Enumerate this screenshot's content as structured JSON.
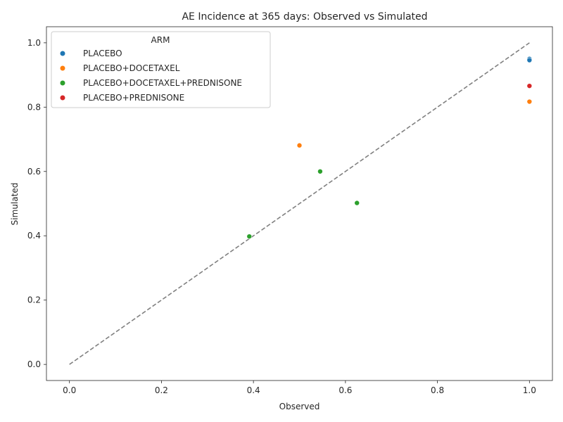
{
  "chart_data": {
    "type": "scatter",
    "title": "AE Incidence at 365 days: Observed vs Simulated",
    "xlabel": "Observed",
    "ylabel": "Simulated",
    "xlim": [
      -0.05,
      1.05
    ],
    "ylim": [
      -0.05,
      1.05
    ],
    "x_ticks": [
      "0.0",
      "0.2",
      "0.4",
      "0.6",
      "0.8",
      "1.0"
    ],
    "y_ticks": [
      "0.0",
      "0.2",
      "0.4",
      "0.6",
      "0.8",
      "1.0"
    ],
    "grid": false,
    "legend": {
      "title": "ARM",
      "placement": "top-left"
    },
    "reference_line": {
      "style": "dashed",
      "color": "#808080",
      "x": [
        0,
        1
      ],
      "y": [
        0,
        1
      ]
    },
    "series": [
      {
        "name": "PLACEBO",
        "color": "#1f77b4",
        "points": [
          [
            1.0,
            0.95
          ],
          [
            1.0,
            0.946
          ]
        ]
      },
      {
        "name": "PLACEBO+DOCETAXEL",
        "color": "#ff7f0e",
        "points": [
          [
            0.5,
            0.681
          ],
          [
            1.0,
            0.817
          ]
        ]
      },
      {
        "name": "PLACEBO+DOCETAXEL+PREDNISONE",
        "color": "#2ca02c",
        "points": [
          [
            0.391,
            0.398
          ],
          [
            0.545,
            0.6
          ],
          [
            0.625,
            0.502
          ]
        ]
      },
      {
        "name": "PLACEBO+PREDNISONE",
        "color": "#d62728",
        "points": [
          [
            1.0,
            0.866
          ]
        ]
      }
    ]
  }
}
